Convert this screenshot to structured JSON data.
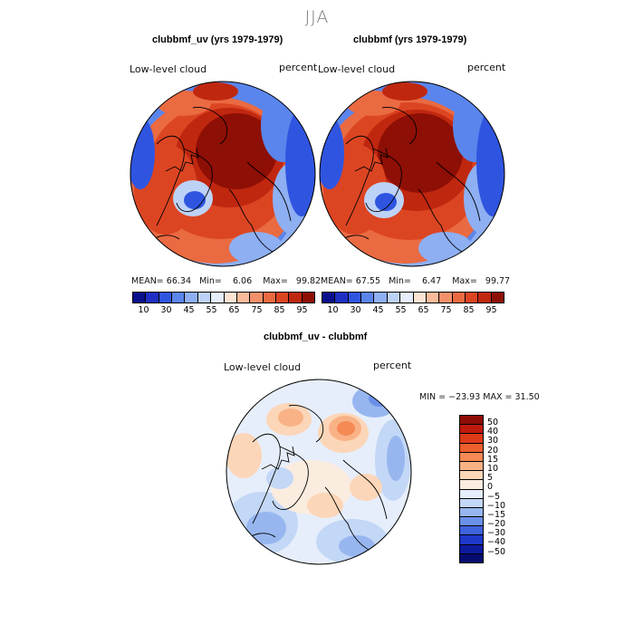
{
  "season": "JJA",
  "panels": [
    {
      "title": "clubbmf_uv (yrs 1979-1979)",
      "variable_label": "Low-level cloud",
      "units_label": "percent",
      "stats": {
        "mean_label": "MEAN=",
        "mean": "66.34",
        "min_label": "Min=",
        "min": "6.06",
        "max_label": "Max=",
        "max": "99.82"
      }
    },
    {
      "title": "clubbmf (yrs 1979-1979)",
      "variable_label": "Low-level cloud",
      "units_label": "percent",
      "stats": {
        "mean_label": "MEAN=",
        "mean": "67.55",
        "min_label": "Min=",
        "min": "6.47",
        "max_label": "Max=",
        "max": "99.77"
      }
    }
  ],
  "diff_panel": {
    "title": "clubbmf_uv - clubbmf",
    "variable_label": "Low-level cloud",
    "units_label": "percent",
    "stats_text": "MIN = −23.93 MAX =   31.50"
  },
  "colorbar_main": {
    "tick_labels": [
      "10",
      "30",
      "45",
      "55",
      "65",
      "75",
      "85",
      "95"
    ],
    "colors": [
      "#0a0f8c",
      "#1f2fc4",
      "#2f55e0",
      "#5a85ec",
      "#8eaff2",
      "#bdd2f7",
      "#e6eefb",
      "#fde3d2",
      "#f9bb9a",
      "#f3906a",
      "#ea6a42",
      "#dc4522",
      "#c0270f",
      "#8e0f05"
    ]
  },
  "colorbar_diff": {
    "tick_labels": [
      "50",
      "40",
      "30",
      "20",
      "15",
      "10",
      "5",
      "0",
      "−5",
      "−10",
      "−15",
      "−20",
      "−30",
      "−40",
      "−50"
    ],
    "colors": [
      "#8e0c06",
      "#c01a0c",
      "#dd3a18",
      "#ee5f2e",
      "#f58a55",
      "#f9b286",
      "#fcd6b8",
      "#fbece0",
      "#e6eefb",
      "#c3d7f6",
      "#97b6f0",
      "#6b90e8",
      "#3f63dc",
      "#1f38c8",
      "#0e1a9e",
      "#050c70"
    ]
  },
  "chart_data": [
    {
      "type": "map",
      "title": "clubbmf_uv (yrs 1979-1979)",
      "projection": "north-polar-stereographic",
      "variable": "Low-level cloud",
      "units": "percent",
      "mean": 66.34,
      "min": 6.06,
      "max": 99.82,
      "contour_levels": [
        10,
        30,
        45,
        55,
        65,
        75,
        85,
        95
      ]
    },
    {
      "type": "map",
      "title": "clubbmf (yrs 1979-1979)",
      "projection": "north-polar-stereographic",
      "variable": "Low-level cloud",
      "units": "percent",
      "mean": 67.55,
      "min": 6.47,
      "max": 99.77,
      "contour_levels": [
        10,
        30,
        45,
        55,
        65,
        75,
        85,
        95
      ]
    },
    {
      "type": "map",
      "title": "clubbmf_uv - clubbmf",
      "projection": "north-polar-stereographic",
      "variable": "Low-level cloud",
      "units": "percent",
      "min": -23.93,
      "max": 31.5,
      "contour_levels": [
        -50,
        -40,
        -30,
        -20,
        -15,
        -10,
        -5,
        0,
        5,
        10,
        15,
        20,
        30,
        40,
        50
      ]
    }
  ]
}
